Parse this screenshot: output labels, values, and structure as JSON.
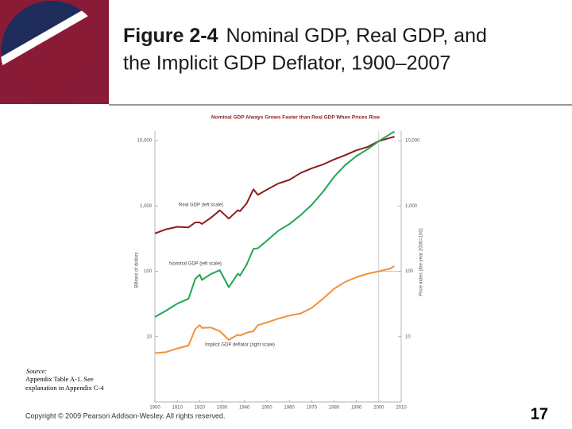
{
  "header": {
    "title_bold": "Figure 2-4",
    "title_rest": "Nominal GDP, Real GDP, and",
    "title_line2": "the Implicit GDP Deflator, 1900–2007"
  },
  "chart_data": {
    "type": "line",
    "title": "Nominal GDP Always Grows Faster than Real GDP When Prices Rise",
    "ylabel": "Billions of dollars",
    "y2label": "Price index (the year 2000=100)",
    "log_scale": true,
    "x": [
      1900,
      1905,
      1910,
      1915,
      1918,
      1920,
      1921,
      1925,
      1929,
      1933,
      1937,
      1938,
      1941,
      1944,
      1946,
      1950,
      1955,
      1960,
      1965,
      1970,
      1975,
      1980,
      1985,
      1990,
      1995,
      2000,
      2005,
      2007
    ],
    "xlim": [
      1900,
      2010
    ],
    "xticks": [
      1900,
      1910,
      1920,
      1930,
      1940,
      1950,
      1960,
      1970,
      1980,
      1990,
      2000,
      2010
    ],
    "ylim": [
      1,
      14000
    ],
    "yticks": [
      {
        "value": 10,
        "label": "10"
      },
      {
        "value": 100,
        "label": "100"
      },
      {
        "value": 1000,
        "label": "1,000"
      },
      {
        "value": 10000,
        "label": "10,000"
      }
    ],
    "y2lim": [
      1,
      14000
    ],
    "y2ticks": [
      {
        "value": 10,
        "label": "10"
      },
      {
        "value": 100,
        "label": "100"
      },
      {
        "value": 1000,
        "label": "1,000"
      },
      {
        "value": 10000,
        "label": "10,000"
      }
    ],
    "reference_x": 2000,
    "reference_y": 100,
    "series": [
      {
        "name": "Real GDP (left scale)",
        "color": "#8c1c1c",
        "values": [
          380,
          440,
          480,
          470,
          560,
          560,
          530,
          660,
          860,
          640,
          860,
          830,
          1100,
          1800,
          1480,
          1780,
          2200,
          2500,
          3190,
          3770,
          4310,
          5160,
          5990,
          7110,
          8030,
          9820,
          11000,
          11520
        ]
      },
      {
        "name": "Nominal GDP (left scale)",
        "color": "#1fa653",
        "values": [
          20,
          25,
          32,
          38,
          76,
          89,
          74,
          91,
          104,
          57,
          92,
          86,
          127,
          220,
          225,
          294,
          415,
          526,
          720,
          1040,
          1640,
          2790,
          4220,
          5800,
          7400,
          9820,
          12600,
          13800
        ]
      },
      {
        "name": "Implicit GDP deflator (right scale)",
        "color": "#f0913a",
        "axis": "y2",
        "values": [
          5.6,
          5.8,
          6.6,
          7.3,
          13,
          15,
          13.6,
          13.8,
          12.1,
          8.9,
          10.7,
          10.4,
          11.5,
          12.1,
          15,
          16.5,
          18.8,
          21,
          22.6,
          27.5,
          38,
          54,
          69,
          81,
          92,
          100,
          110,
          120
        ]
      }
    ]
  },
  "source": {
    "label": "Source:",
    "text": "Appendix Table A-1. See explanation in Appendix C-4"
  },
  "footer": {
    "copyright": "Copyright © 2009 Pearson Addison-Wesley. All rights reserved.",
    "page": "17"
  }
}
